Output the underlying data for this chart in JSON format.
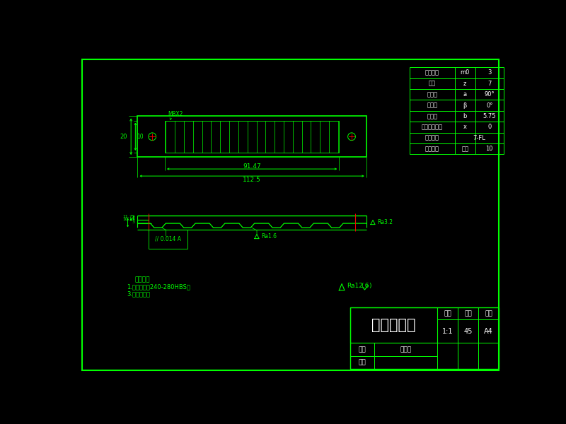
{
  "bg_color": "#000000",
  "line_color": "#00ff00",
  "red_color": "#ff0000",
  "white_color": "#ffffff",
  "table_rows": [
    [
      "法向模数",
      "m0",
      "3"
    ],
    [
      "齿数",
      "z",
      "7"
    ],
    [
      "齿形角",
      "a",
      "90°"
    ],
    [
      "螺旋角",
      "β",
      "0°"
    ],
    [
      "全齿高",
      "b",
      "5.75"
    ],
    [
      "径向变位系数",
      "x",
      "0"
    ],
    [
      "精度等级",
      "7-FL",
      ""
    ],
    [
      "配对齿轮",
      "齿数",
      "10"
    ]
  ],
  "title_block": {
    "title": "坡口机齿条",
    "ratio": "1:1",
    "material": "45",
    "drawing_no": "A4",
    "draw_label": "制图",
    "draw_name": "杜国玉",
    "check_label": "审核"
  },
  "tech_req_title": "技术要求",
  "tech_req_1": "1.热处理调质240-280HBS；",
  "tech_req_2": "3.清除毛刺。",
  "dim_91_47": "91.47",
  "dim_112_5": "112.5"
}
